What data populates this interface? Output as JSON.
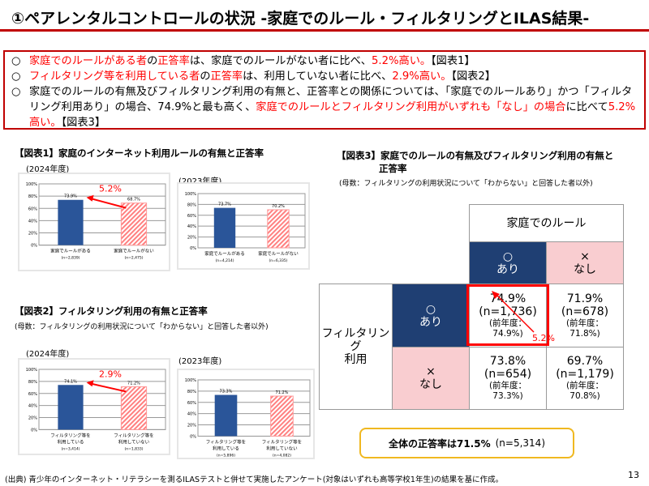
{
  "title": "①ペアレンタルコントロールの状況 -家庭でのルール・フィルタリングとILAS結果-",
  "summary": [
    {
      "bullet": "○",
      "parts": [
        {
          "t": "家庭でのルールがある者",
          "red": true
        },
        {
          "t": "の"
        },
        {
          "t": "正答率",
          "red": true
        },
        {
          "t": "は、家庭でのルールがない者に比べ、"
        },
        {
          "t": "5.2%高い。",
          "red": true
        },
        {
          "t": "【図表1】"
        }
      ]
    },
    {
      "bullet": "○",
      "parts": [
        {
          "t": "フィルタリング等を利用している者",
          "red": true
        },
        {
          "t": "の"
        },
        {
          "t": "正答率",
          "red": true
        },
        {
          "t": "は、利用していない者に比べ、"
        },
        {
          "t": "2.9%高い。",
          "red": true
        },
        {
          "t": "【図表2】"
        }
      ]
    },
    {
      "bullet": "○",
      "parts": [
        {
          "t": "家庭でのルールの有無及びフィルタリング利用の有無と、正答率との関係については、「家庭でのルールあり」かつ「フィルタリング利用あり」の場合、74.9%と最も高く、"
        },
        {
          "t": "家庭でのルールとフィルタリング利用がいずれも「なし」の場合",
          "red": true
        },
        {
          "t": "に比べて"
        },
        {
          "t": "5.2%高い。",
          "red": true
        },
        {
          "t": "【図表3】"
        }
      ]
    }
  ],
  "fig1": {
    "title": "【図表1】家庭のインターネット利用ルールの有無と正答率",
    "diff": "5.2%"
  },
  "fig2": {
    "title": "【図表2】フィルタリング利用の有無と正答率",
    "subtitle": "(母数：フィルタリングの利用状況について「わからない」と回答した者以外)",
    "diff": "2.9%"
  },
  "fig3": {
    "title1": "【図表3】家庭でのルールの有無及びフィルタリング利用の有無と",
    "title2": "正答率",
    "subtitle": "(母数：フィルタリングの利用状況について「わからない」と回答した者以外)",
    "col_header": "家庭でのルール",
    "row_header": "フィルタリング\n利用",
    "col_yes": "○\nあり",
    "col_no": "×\nなし",
    "row_yes": "○\nあり",
    "row_no": "×\nなし",
    "cells": [
      {
        "v": "74.9%",
        "n": "(n=1,736)",
        "prev": "(前年度：\n74.9%)"
      },
      {
        "v": "71.9%",
        "n": "(n=678)",
        "prev": "(前年度：\n71.8%)"
      },
      {
        "v": "73.8%",
        "n": "(n=654)",
        "prev": "(前年度：\n73.3%)"
      },
      {
        "v": "69.7%",
        "n": "(n=1,179)",
        "prev": "(前年度：\n70.8%)"
      }
    ],
    "diff": "5.2%",
    "colors": {
      "yes": "#1f3f73",
      "no": "#f9cdd0",
      "highlight": "#ff0000"
    }
  },
  "overall": {
    "label": "全体の正答率は71.5%",
    "n": "(n=5,314)"
  },
  "footer": "(出典) 青少年のインターネット・リテラシーを測るILASテストと併せて実施したアンケート(対象はいずれも高等学校1年生)の結果を基に作成。",
  "page": "13",
  "chart_data": [
    {
      "type": "bar",
      "title": "(2024年度)",
      "ylim": [
        0,
        100
      ],
      "yticks": [
        "0%",
        "20%",
        "40%",
        "60%",
        "80%",
        "100%"
      ],
      "categories": [
        "家庭でルールがある\n(n=2,839)",
        "家庭でルールがない\n(n=2,475)"
      ],
      "values": [
        73.9,
        68.7
      ],
      "labels": [
        "73.9%",
        "68.7%"
      ],
      "colors": [
        "#2a5599",
        "#ff9999"
      ]
    },
    {
      "type": "bar",
      "title": "(2023年度)",
      "ylim": [
        0,
        100
      ],
      "yticks": [
        "0%",
        "20%",
        "40%",
        "60%",
        "80%",
        "100%"
      ],
      "categories": [
        "家庭でルールがある\n(n=4,214)",
        "家庭でルールがない\n(n=6,335)"
      ],
      "values": [
        73.7,
        70.2
      ],
      "labels": [
        "73.7%",
        "70.2%"
      ],
      "colors": [
        "#2a5599",
        "#ff9999"
      ]
    },
    {
      "type": "bar",
      "title": "(2024年度)",
      "ylim": [
        0,
        100
      ],
      "yticks": [
        "0%",
        "20%",
        "40%",
        "60%",
        "80%",
        "100%"
      ],
      "categories": [
        "フィルタリング等を\n利用している\n(n=3,414)",
        "フィルタリング等を\n利用していない\n(n=1,833)"
      ],
      "values": [
        74.1,
        71.2
      ],
      "labels": [
        "74.1%",
        "71.2%"
      ],
      "colors": [
        "#2a5599",
        "#ff9999"
      ]
    },
    {
      "type": "bar",
      "title": "(2023年度)",
      "ylim": [
        0,
        100
      ],
      "yticks": [
        "0%",
        "20%",
        "40%",
        "60%",
        "80%",
        "100%"
      ],
      "categories": [
        "フィルタリング等を\n利用している\n(n=5,896)",
        "フィルタリング等を\n利用していない\n(n=4,082)"
      ],
      "values": [
        73.3,
        71.2
      ],
      "labels": [
        "73.3%",
        "71.2%"
      ],
      "colors": [
        "#2a5599",
        "#ff9999"
      ]
    }
  ]
}
